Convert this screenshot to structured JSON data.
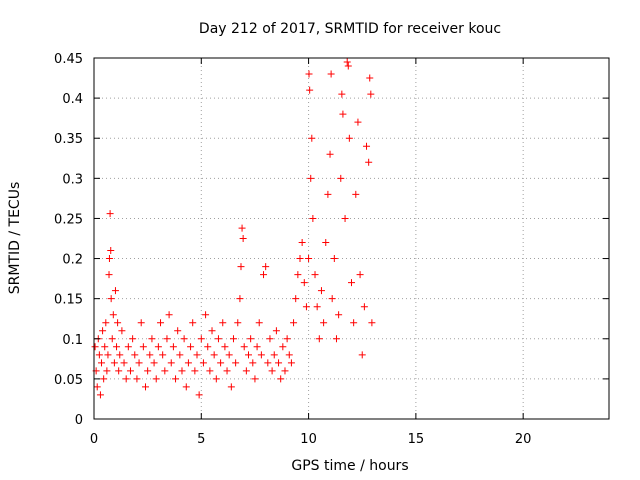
{
  "chart_data": {
    "type": "scatter",
    "title": "Day 212 of 2017, SRMTID for receiver kouc",
    "xlabel": "GPS time / hours",
    "ylabel": "SRMTID / TECUs",
    "xlim": [
      0,
      24
    ],
    "ylim": [
      0,
      0.45
    ],
    "x_ticks": [
      0,
      5,
      10,
      15,
      20
    ],
    "x_tick_labels": [
      "0",
      "5",
      "10",
      "15",
      "20"
    ],
    "y_ticks": [
      0,
      0.05,
      0.1,
      0.15,
      0.2,
      0.25,
      0.3,
      0.35,
      0.4,
      0.45
    ],
    "y_tick_labels": [
      "0",
      "0.05",
      "0.1",
      "0.15",
      "0.2",
      "0.25",
      "0.3",
      "0.35",
      "0.4",
      "0.45"
    ],
    "grid": true,
    "marker": "+",
    "color": "#ff0000",
    "series": [
      {
        "name": "SRMTID",
        "points": [
          [
            0.05,
            0.09
          ],
          [
            0.1,
            0.06
          ],
          [
            0.15,
            0.04
          ],
          [
            0.2,
            0.1
          ],
          [
            0.25,
            0.08
          ],
          [
            0.3,
            0.03
          ],
          [
            0.35,
            0.07
          ],
          [
            0.4,
            0.11
          ],
          [
            0.45,
            0.05
          ],
          [
            0.5,
            0.09
          ],
          [
            0.55,
            0.12
          ],
          [
            0.6,
            0.06
          ],
          [
            0.65,
            0.08
          ],
          [
            0.7,
            0.18
          ],
          [
            0.72,
            0.2
          ],
          [
            0.75,
            0.256
          ],
          [
            0.78,
            0.21
          ],
          [
            0.8,
            0.15
          ],
          [
            0.85,
            0.1
          ],
          [
            0.9,
            0.13
          ],
          [
            0.95,
            0.07
          ],
          [
            1.0,
            0.16
          ],
          [
            1.05,
            0.09
          ],
          [
            1.1,
            0.12
          ],
          [
            1.15,
            0.06
          ],
          [
            1.2,
            0.08
          ],
          [
            1.3,
            0.11
          ],
          [
            1.4,
            0.07
          ],
          [
            1.5,
            0.05
          ],
          [
            1.6,
            0.09
          ],
          [
            1.7,
            0.06
          ],
          [
            1.8,
            0.1
          ],
          [
            1.9,
            0.08
          ],
          [
            2.0,
            0.05
          ],
          [
            2.1,
            0.07
          ],
          [
            2.2,
            0.12
          ],
          [
            2.3,
            0.09
          ],
          [
            2.4,
            0.04
          ],
          [
            2.5,
            0.06
          ],
          [
            2.6,
            0.08
          ],
          [
            2.7,
            0.1
          ],
          [
            2.8,
            0.07
          ],
          [
            2.9,
            0.05
          ],
          [
            3.0,
            0.09
          ],
          [
            3.1,
            0.12
          ],
          [
            3.2,
            0.08
          ],
          [
            3.3,
            0.06
          ],
          [
            3.4,
            0.1
          ],
          [
            3.5,
            0.13
          ],
          [
            3.6,
            0.07
          ],
          [
            3.7,
            0.09
          ],
          [
            3.8,
            0.05
          ],
          [
            3.9,
            0.11
          ],
          [
            4.0,
            0.08
          ],
          [
            4.1,
            0.06
          ],
          [
            4.2,
            0.1
          ],
          [
            4.3,
            0.04
          ],
          [
            4.4,
            0.07
          ],
          [
            4.5,
            0.09
          ],
          [
            4.6,
            0.12
          ],
          [
            4.7,
            0.06
          ],
          [
            4.8,
            0.08
          ],
          [
            4.9,
            0.03
          ],
          [
            5.0,
            0.1
          ],
          [
            5.1,
            0.07
          ],
          [
            5.2,
            0.13
          ],
          [
            5.3,
            0.09
          ],
          [
            5.4,
            0.06
          ],
          [
            5.5,
            0.11
          ],
          [
            5.6,
            0.08
          ],
          [
            5.7,
            0.05
          ],
          [
            5.8,
            0.1
          ],
          [
            5.9,
            0.07
          ],
          [
            6.0,
            0.12
          ],
          [
            6.1,
            0.09
          ],
          [
            6.2,
            0.06
          ],
          [
            6.3,
            0.08
          ],
          [
            6.4,
            0.04
          ],
          [
            6.5,
            0.1
          ],
          [
            6.6,
            0.07
          ],
          [
            6.7,
            0.12
          ],
          [
            6.8,
            0.15
          ],
          [
            6.85,
            0.19
          ],
          [
            6.9,
            0.238
          ],
          [
            6.95,
            0.225
          ],
          [
            7.0,
            0.09
          ],
          [
            7.1,
            0.06
          ],
          [
            7.2,
            0.08
          ],
          [
            7.3,
            0.1
          ],
          [
            7.4,
            0.07
          ],
          [
            7.5,
            0.05
          ],
          [
            7.6,
            0.09
          ],
          [
            7.7,
            0.12
          ],
          [
            7.8,
            0.08
          ],
          [
            7.9,
            0.18
          ],
          [
            8.0,
            0.19
          ],
          [
            8.1,
            0.07
          ],
          [
            8.2,
            0.1
          ],
          [
            8.3,
            0.06
          ],
          [
            8.4,
            0.08
          ],
          [
            8.5,
            0.11
          ],
          [
            8.6,
            0.07
          ],
          [
            8.7,
            0.05
          ],
          [
            8.8,
            0.09
          ],
          [
            8.9,
            0.06
          ],
          [
            9.0,
            0.1
          ],
          [
            9.1,
            0.08
          ],
          [
            9.2,
            0.07
          ],
          [
            9.3,
            0.12
          ],
          [
            9.4,
            0.15
          ],
          [
            9.5,
            0.18
          ],
          [
            9.6,
            0.2
          ],
          [
            9.7,
            0.22
          ],
          [
            9.8,
            0.17
          ],
          [
            9.9,
            0.14
          ],
          [
            10.0,
            0.2
          ],
          [
            10.02,
            0.43
          ],
          [
            10.05,
            0.41
          ],
          [
            10.1,
            0.3
          ],
          [
            10.15,
            0.35
          ],
          [
            10.2,
            0.25
          ],
          [
            10.3,
            0.18
          ],
          [
            10.4,
            0.14
          ],
          [
            10.5,
            0.1
          ],
          [
            10.6,
            0.16
          ],
          [
            10.7,
            0.12
          ],
          [
            10.8,
            0.22
          ],
          [
            10.9,
            0.28
          ],
          [
            11.0,
            0.33
          ],
          [
            11.05,
            0.43
          ],
          [
            11.1,
            0.15
          ],
          [
            11.2,
            0.2
          ],
          [
            11.3,
            0.1
          ],
          [
            11.4,
            0.13
          ],
          [
            11.5,
            0.3
          ],
          [
            11.55,
            0.405
          ],
          [
            11.6,
            0.38
          ],
          [
            11.7,
            0.25
          ],
          [
            11.8,
            0.445
          ],
          [
            11.85,
            0.44
          ],
          [
            11.9,
            0.35
          ],
          [
            12.0,
            0.17
          ],
          [
            12.1,
            0.12
          ],
          [
            12.2,
            0.28
          ],
          [
            12.3,
            0.37
          ],
          [
            12.4,
            0.18
          ],
          [
            12.5,
            0.08
          ],
          [
            12.6,
            0.14
          ],
          [
            12.7,
            0.34
          ],
          [
            12.8,
            0.32
          ],
          [
            12.85,
            0.425
          ],
          [
            12.9,
            0.405
          ],
          [
            12.95,
            0.12
          ]
        ]
      }
    ]
  }
}
